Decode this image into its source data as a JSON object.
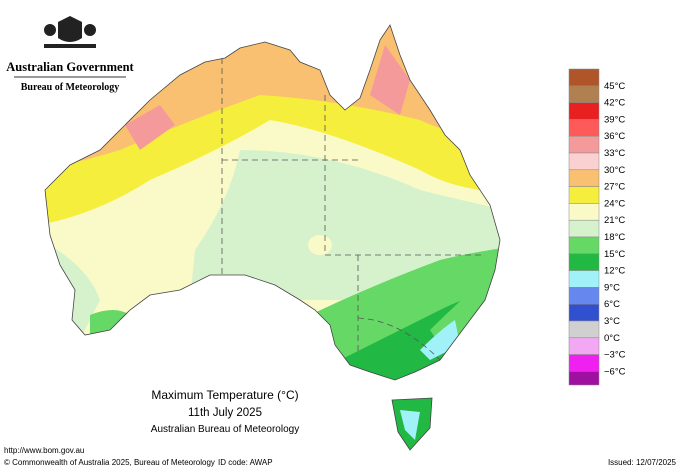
{
  "header": {
    "government": "Australian Government",
    "agency": "Bureau of Meteorology"
  },
  "title": {
    "line1": "Maximum Temperature (°C)",
    "line2": "11th July 2025",
    "line3": "Australian Bureau of Meteorology"
  },
  "legend": [
    {
      "label": "45°C",
      "color": "#b0552a"
    },
    {
      "label": "42°C",
      "color": "#b08050"
    },
    {
      "label": "39°C",
      "color": "#e82020"
    },
    {
      "label": "36°C",
      "color": "#ff5a5a"
    },
    {
      "label": "33°C",
      "color": "#f49a9a"
    },
    {
      "label": "30°C",
      "color": "#fad0d0"
    },
    {
      "label": "27°C",
      "color": "#f8c070"
    },
    {
      "label": "24°C",
      "color": "#f6ee3c"
    },
    {
      "label": "21°C",
      "color": "#fafac8"
    },
    {
      "label": "18°C",
      "color": "#d6f2cc"
    },
    {
      "label": "15°C",
      "color": "#66d866"
    },
    {
      "label": "12°C",
      "color": "#22b844"
    },
    {
      "label": "9°C",
      "color": "#a0f2f8"
    },
    {
      "label": "6°C",
      "color": "#6688ee"
    },
    {
      "label": "3°C",
      "color": "#3050d0"
    },
    {
      "label": "0°C",
      "color": "#d0d0d0"
    },
    {
      "label": "−3°C",
      "color": "#f2a8f2"
    },
    {
      "label": "−6°C",
      "color": "#f020f0"
    }
  ],
  "footer": {
    "url": "http://www.bom.gov.au",
    "copyright": "© Commonwealth of Australia 2025, Bureau of Meteorology",
    "id": "ID code: AWAP",
    "issued": "Issued: 12/07/2025"
  }
}
